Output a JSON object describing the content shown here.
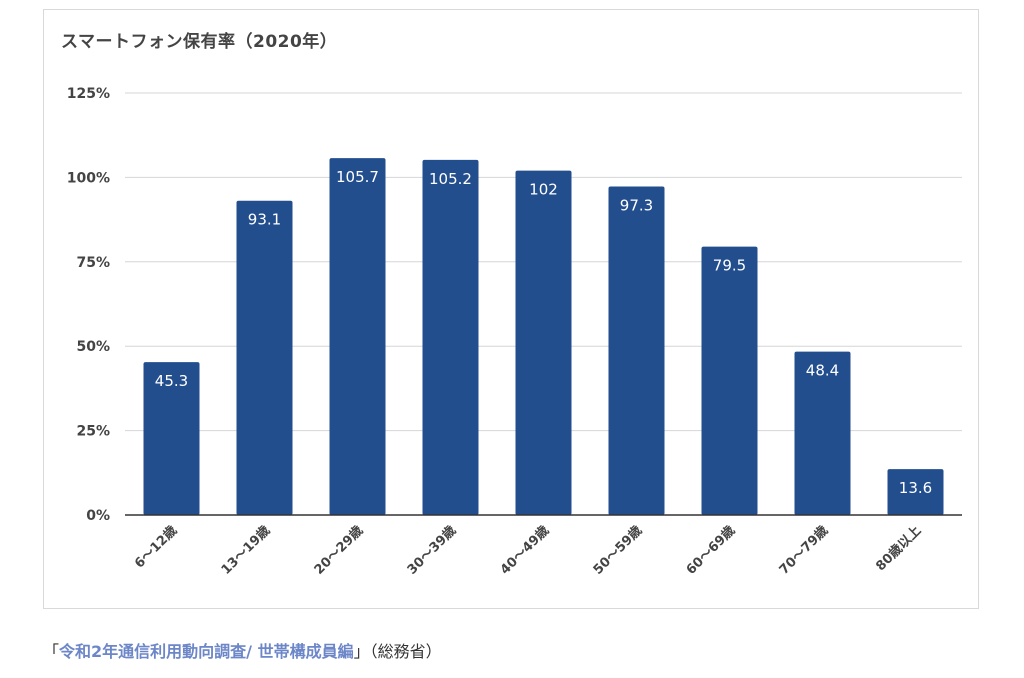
{
  "chart_data": {
    "type": "bar",
    "title": "スマートフォン保有率（2020年）",
    "categories": [
      "6～12歳",
      "13～19歳",
      "20～29歳",
      "30～39歳",
      "40～49歳",
      "50～59歳",
      "60～69歳",
      "70～79歳",
      "80歳以上"
    ],
    "values": [
      45.3,
      93.1,
      105.7,
      105.2,
      102,
      97.3,
      79.5,
      48.4,
      13.6
    ],
    "data_labels": [
      "45.3",
      "93.1",
      "105.7",
      "105.2",
      "102",
      "97.3",
      "79.5",
      "48.4",
      "13.6"
    ],
    "yticks": [
      0,
      25,
      50,
      75,
      100,
      125
    ],
    "ytick_labels": [
      "0%",
      "25%",
      "50%",
      "75%",
      "100%",
      "125%"
    ],
    "ylim": [
      0,
      125
    ],
    "xlabel": "",
    "ylabel": "",
    "grid": true,
    "legend": "none",
    "bar_color": "#234e8e"
  },
  "caption": {
    "open_bracket": "「",
    "link_text": "令和2年通信利用動向調査/ 世帯構成員編",
    "close_bracket": "」",
    "suffix": "（総務省）"
  }
}
